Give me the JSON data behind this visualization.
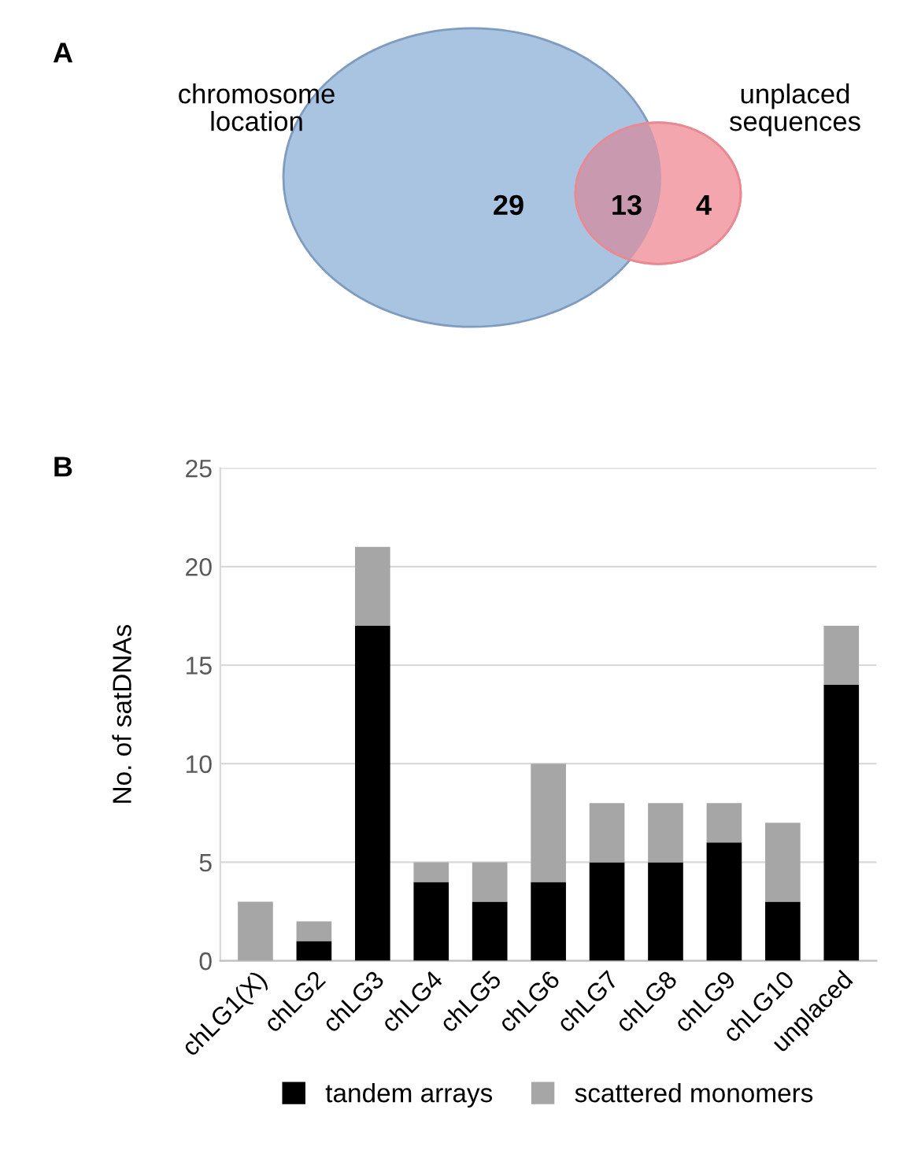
{
  "chart_data": [
    {
      "type": "other",
      "title": "A",
      "annotations": [
        "chromosome\nlocation",
        "unplaced\nsequences"
      ],
      "categories": [
        null,
        null,
        null
      ],
      "colors": [
        "#a9c4e0",
        "#c99aaf",
        "#f4a6ae"
      ],
      "values": [
        29,
        13,
        4
      ],
      "data_labels": true
    },
    {
      "type": "bar",
      "title": "B",
      "ylabel": "No. of satDNAs",
      "stacked": true,
      "categories": [
        "chLG1(X)",
        "chLG2",
        "chLG3",
        "chLG4",
        "chLG5",
        "chLG6",
        "chLG7",
        "chLG8",
        "chLG9",
        "chLG10",
        "unplaced"
      ],
      "series": [
        {
          "name": "tandem arrays",
          "color": "#000000",
          "values": [
            0,
            1,
            17,
            4,
            3,
            4,
            5,
            5,
            6,
            3,
            14
          ]
        },
        {
          "name": "scattered monomers",
          "color": "#a6a6a6",
          "values": [
            3,
            1,
            4,
            1,
            2,
            6,
            3,
            3,
            2,
            4,
            3
          ]
        }
      ],
      "ylim": [
        0,
        25
      ],
      "yticks": [
        0,
        5,
        10,
        15,
        20,
        25
      ],
      "grid": "y",
      "legend": "bottom"
    }
  ]
}
